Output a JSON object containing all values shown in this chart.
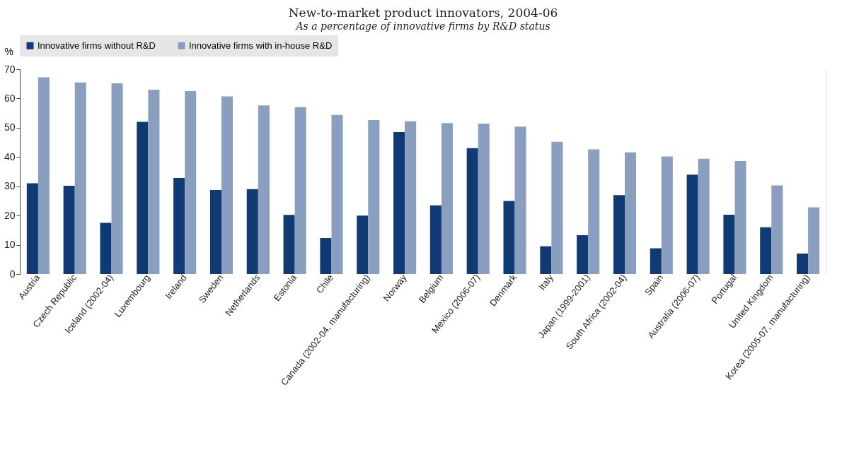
{
  "chart_data": {
    "type": "bar",
    "title": "New-to-market product innovators, 2004-06",
    "subtitle": "As a percentage of innovative firms by R&D status",
    "ylabel": "%",
    "categories": [
      "Austria",
      "Czech Republic",
      "Iceland (2002-04)",
      "Luxembourg",
      "Ireland",
      "Sweden",
      "Netherlands",
      "Estonia",
      "Chile",
      "Canada (2002-04, manufacturing)",
      "Norway",
      "Belgium",
      "Mexico (2006-07)",
      "Denmark",
      "Italy",
      "Japan (1999-2001)",
      "South Africa (2002-04)",
      "Spain",
      "Australia (2006-07)",
      "Portugal",
      "United Kingdom",
      "Korea (2005-07, manufacturing)"
    ],
    "series": [
      {
        "name": "Innovative firms without R&D",
        "color": "#0f3a74",
        "values": [
          31,
          30.2,
          17.5,
          52,
          32.8,
          28.7,
          29,
          20.2,
          12.3,
          20,
          48.5,
          23.5,
          43,
          25,
          9.5,
          13.3,
          27,
          8.8,
          34,
          20.3,
          16,
          7
        ]
      },
      {
        "name": "Innovative firms with in-house R&D",
        "color": "#8a9fbf",
        "values": [
          67.2,
          65.5,
          65.2,
          63,
          62.5,
          60.7,
          57.6,
          57,
          54.4,
          52.6,
          52.2,
          51.6,
          51.4,
          50.4,
          45.2,
          42.6,
          41.6,
          40.2,
          39.4,
          38.6,
          30.3,
          22.8
        ]
      }
    ],
    "ylim": [
      0,
      70
    ],
    "yticks": [
      0,
      10,
      20,
      30,
      40,
      50,
      60,
      70
    ],
    "grid": true,
    "legend": "top"
  }
}
